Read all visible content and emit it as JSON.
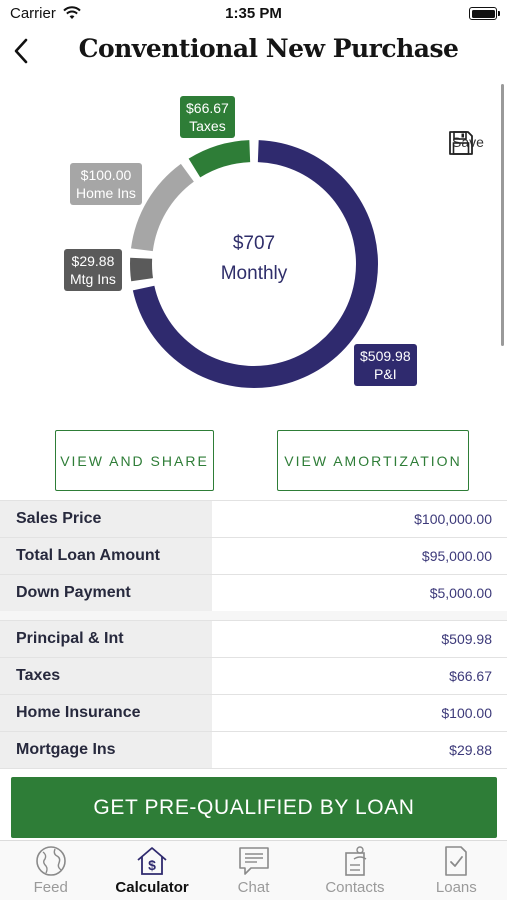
{
  "status_bar": {
    "carrier": "Carrier",
    "time": "1:35 PM"
  },
  "header": {
    "title": "Conventional New Purchase"
  },
  "chart_data": {
    "type": "pie",
    "style": "donut",
    "center_amount": "$707",
    "center_label": "Monthly",
    "slices": [
      {
        "label": "P&I",
        "value": 509.98,
        "display": "$509.98",
        "color": "#2f2a6e"
      },
      {
        "label": "Mtg Ins",
        "value": 29.88,
        "display": "$29.88",
        "color": "#5a5a5a"
      },
      {
        "label": "Home Ins",
        "value": 100.0,
        "display": "$100.00",
        "color": "#a6a6a6"
      },
      {
        "label": "Taxes",
        "value": 66.67,
        "display": "$66.67",
        "color": "#2e7d37"
      }
    ]
  },
  "save": {
    "label": "Save",
    "icon": "floppy-disk-icon"
  },
  "actions": {
    "view_share": "VIEW AND SHARE",
    "view_amortization": "VIEW AMORTIZATION"
  },
  "loan_summary": [
    {
      "label": "Sales Price",
      "value": "$100,000.00"
    },
    {
      "label": "Total Loan Amount",
      "value": "$95,000.00"
    },
    {
      "label": "Down Payment",
      "value": "$5,000.00"
    }
  ],
  "payment_breakdown": [
    {
      "label": "Principal & Int",
      "value": "$509.98"
    },
    {
      "label": "Taxes",
      "value": "$66.67"
    },
    {
      "label": "Home Insurance",
      "value": "$100.00"
    },
    {
      "label": "Mortgage Ins",
      "value": "$29.88"
    }
  ],
  "cta": {
    "label": "GET PRE-QUALIFIED BY LOAN"
  },
  "tabs": [
    {
      "label": "Feed",
      "icon": "globe-icon",
      "active": false
    },
    {
      "label": "Calculator",
      "icon": "house-dollar-icon",
      "active": true
    },
    {
      "label": "Chat",
      "icon": "chat-bubble-icon",
      "active": false
    },
    {
      "label": "Contacts",
      "icon": "contacts-icon",
      "active": false
    },
    {
      "label": "Loans",
      "icon": "document-check-icon",
      "active": false
    }
  ]
}
